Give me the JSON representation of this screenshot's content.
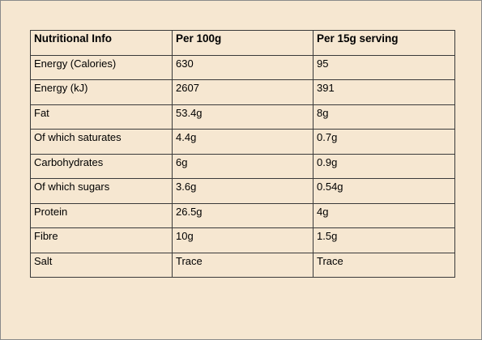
{
  "table": {
    "header": [
      "Nutritional Info",
      "Per 100g",
      "Per 15g serving"
    ],
    "rows": [
      [
        "Energy (Calories)",
        "630",
        "95"
      ],
      [
        "Energy (kJ)",
        "2607",
        "391"
      ],
      [
        "Fat",
        "53.4g",
        "8g"
      ],
      [
        "Of which saturates",
        "4.4g",
        "0.7g"
      ],
      [
        "Carbohydrates",
        "6g",
        "0.9g"
      ],
      [
        "Of which sugars",
        "3.6g",
        "0.54g"
      ],
      [
        "Protein",
        "26.5g",
        "4g"
      ],
      [
        "Fibre",
        "10g",
        "1.5g"
      ],
      [
        "Salt",
        "Trace",
        "Trace"
      ]
    ]
  }
}
